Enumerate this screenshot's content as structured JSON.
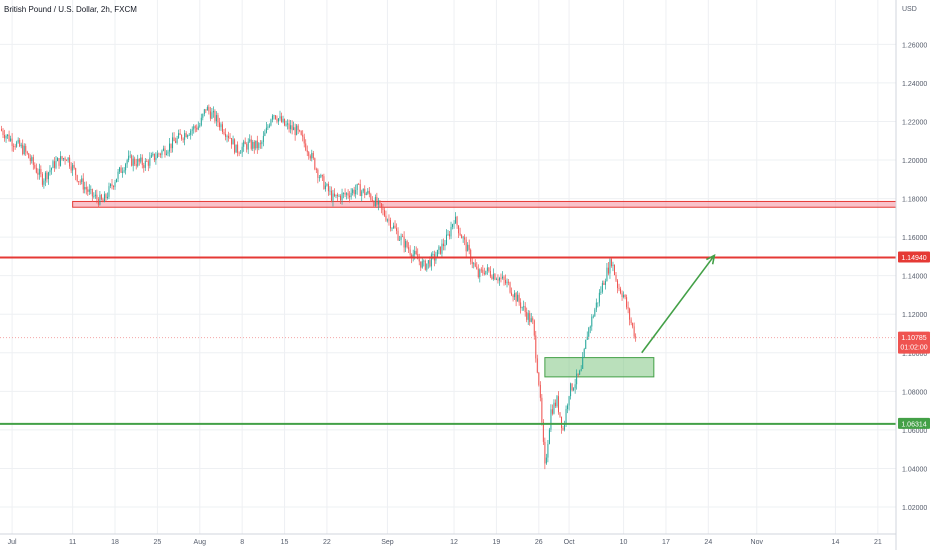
{
  "header": {
    "title": "British Pound / U.S. Dollar, 2h, FXCM",
    "currency": "USD"
  },
  "colors": {
    "up_candle": "#26a69a",
    "down_candle": "#ef5350",
    "resistance": "#e53935",
    "support": "#43a047",
    "grid": "#eef0f3",
    "axis_text": "#555c6b"
  },
  "chart_data": {
    "type": "candlestick",
    "timeframe": "2h",
    "ylim": [
      1.006,
      1.283
    ],
    "y_ticks": [
      "1.02000",
      "1.04000",
      "1.06000",
      "1.08000",
      "1.10000",
      "1.12000",
      "1.14000",
      "1.16000",
      "1.18000",
      "1.20000",
      "1.22000",
      "1.24000",
      "1.26000"
    ],
    "x_ticks": [
      "Jul",
      "11",
      "18",
      "25",
      "Aug",
      "8",
      "15",
      "22",
      "Sep",
      "12",
      "19",
      "26",
      "Oct",
      "10",
      "17",
      "24",
      "Nov",
      "14",
      "21"
    ],
    "x_tick_days": [
      0,
      10,
      17,
      24,
      31,
      38,
      45,
      52,
      62,
      73,
      80,
      87,
      92,
      101,
      108,
      115,
      123,
      136,
      143
    ],
    "x_range_days": [
      -2,
      146
    ],
    "price_path": [
      [
        -2,
        1.216
      ],
      [
        0,
        1.21
      ],
      [
        2,
        1.205
      ],
      [
        5,
        1.19
      ],
      [
        7,
        1.198
      ],
      [
        9,
        1.202
      ],
      [
        11,
        1.19
      ],
      [
        13,
        1.182
      ],
      [
        15,
        1.178
      ],
      [
        17,
        1.19
      ],
      [
        19,
        1.2
      ],
      [
        22,
        1.198
      ],
      [
        25,
        1.205
      ],
      [
        27,
        1.21
      ],
      [
        29,
        1.215
      ],
      [
        31,
        1.218
      ],
      [
        32,
        1.227
      ],
      [
        34,
        1.22
      ],
      [
        36,
        1.212
      ],
      [
        37,
        1.205
      ],
      [
        39,
        1.208
      ],
      [
        41,
        1.207
      ],
      [
        42,
        1.215
      ],
      [
        43,
        1.225
      ],
      [
        45,
        1.218
      ],
      [
        47,
        1.215
      ],
      [
        49,
        1.205
      ],
      [
        51,
        1.19
      ],
      [
        53,
        1.18
      ],
      [
        55,
        1.182
      ],
      [
        57,
        1.185
      ],
      [
        59,
        1.182
      ],
      [
        60,
        1.178
      ],
      [
        62,
        1.17
      ],
      [
        64,
        1.16
      ],
      [
        66,
        1.152
      ],
      [
        68,
        1.145
      ],
      [
        70,
        1.15
      ],
      [
        72,
        1.16
      ],
      [
        73,
        1.17
      ],
      [
        75,
        1.155
      ],
      [
        77,
        1.14
      ],
      [
        78,
        1.143
      ],
      [
        80,
        1.14
      ],
      [
        82,
        1.135
      ],
      [
        84,
        1.125
      ],
      [
        86,
        1.115
      ],
      [
        87,
        1.085
      ],
      [
        88,
        1.04
      ],
      [
        89,
        1.07
      ],
      [
        90,
        1.075
      ],
      [
        91,
        1.06
      ],
      [
        92,
        1.08
      ],
      [
        94,
        1.09
      ],
      [
        95,
        1.11
      ],
      [
        96,
        1.12
      ],
      [
        97,
        1.13
      ],
      [
        98,
        1.14
      ],
      [
        99,
        1.148
      ],
      [
        100,
        1.135
      ],
      [
        101,
        1.13
      ],
      [
        102,
        1.118
      ],
      [
        103,
        1.108
      ]
    ],
    "current_price": "1.10785",
    "countdown": "01:02:00",
    "resistance_line": {
      "label": "1.14940",
      "value": 1.1494
    },
    "support_line": {
      "label": "1.06314",
      "value": 1.06314
    },
    "resistance_zone": {
      "from_day": 10,
      "to_day": 146,
      "low": 1.1755,
      "high": 1.1785
    },
    "demand_zone": {
      "from_day": 88,
      "to_day": 106,
      "low": 1.0875,
      "high": 1.0975
    },
    "projection": {
      "from_day": 104,
      "from_price": 1.1,
      "to_day": 116,
      "to_price": 1.1505
    }
  }
}
